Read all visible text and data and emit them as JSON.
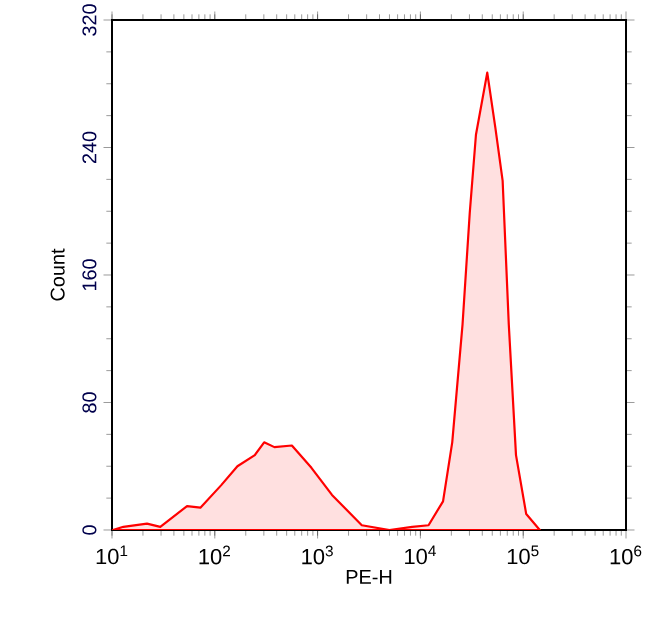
{
  "chart_data": {
    "type": "area",
    "xlabel": "PE-H",
    "ylabel": "Count",
    "log": "x",
    "color": "#ff0000",
    "x": [
      10.2,
      12.9,
      21.9,
      29.5,
      53.7,
      72.4,
      115,
      166,
      245,
      302,
      380,
      562,
      871,
      1380,
      2690,
      5000,
      8320,
      12000,
      16600,
      20400,
      25700,
      30200,
      34700,
      44700,
      53700,
      63100,
      72400,
      85100,
      107000,
      145000
    ],
    "values": [
      0,
      2,
      4,
      2,
      15,
      14,
      28,
      40,
      47,
      55,
      52,
      53,
      39,
      22,
      3,
      0,
      2,
      3,
      18,
      55,
      129,
      199,
      248,
      287,
      252,
      219,
      129,
      47,
      10,
      0
    ],
    "xlim": [
      10,
      1000000
    ],
    "ylim": [
      0,
      320
    ],
    "xticks": [
      {
        "value": 10,
        "label": "10$^{1}$"
      },
      {
        "value": 100,
        "label": "10$^{2}$"
      },
      {
        "value": 1000,
        "label": "10$^{3}$"
      },
      {
        "value": 10000,
        "label": "10$^{4}$"
      },
      {
        "value": 100000,
        "label": "10$^{5}$"
      },
      {
        "value": 1000000,
        "label": "10$^{6}$"
      }
    ],
    "yticks": [
      0,
      80,
      160,
      240,
      320
    ],
    "grid": false
  }
}
